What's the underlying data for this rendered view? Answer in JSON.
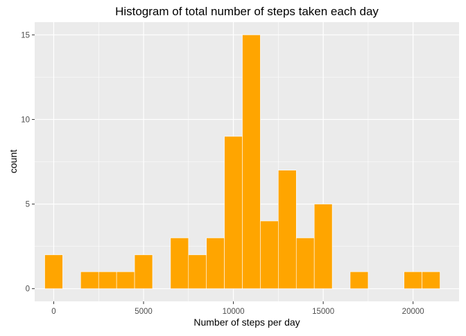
{
  "chart_data": {
    "type": "bar",
    "title": "Histogram of total number of steps taken each day",
    "xlabel": "Number of steps per day",
    "ylabel": "count",
    "xlim": [
      -1060,
      22560
    ],
    "ylim": [
      -0.75,
      15.75
    ],
    "bin_width": 1000,
    "x_ticks": [
      0,
      5000,
      10000,
      15000,
      20000
    ],
    "x_tick_labels": [
      "0",
      "5000",
      "10000",
      "15000",
      "20000"
    ],
    "y_ticks": [
      0,
      5,
      10,
      15
    ],
    "y_tick_labels": [
      "0",
      "5",
      "10",
      "15"
    ],
    "bins": [
      {
        "x": 0,
        "count": 2
      },
      {
        "x": 2000,
        "count": 1
      },
      {
        "x": 3000,
        "count": 1
      },
      {
        "x": 4000,
        "count": 1
      },
      {
        "x": 5000,
        "count": 2
      },
      {
        "x": 7000,
        "count": 3
      },
      {
        "x": 8000,
        "count": 2
      },
      {
        "x": 9000,
        "count": 3
      },
      {
        "x": 10000,
        "count": 9
      },
      {
        "x": 11000,
        "count": 15
      },
      {
        "x": 12000,
        "count": 4
      },
      {
        "x": 13000,
        "count": 7
      },
      {
        "x": 14000,
        "count": 3
      },
      {
        "x": 15000,
        "count": 5
      },
      {
        "x": 17000,
        "count": 1
      },
      {
        "x": 20000,
        "count": 1
      },
      {
        "x": 21000,
        "count": 1
      }
    ],
    "bar_color": "#FFA500",
    "bar_outline": "#FFFFFF",
    "panel_background": "#EBEBEB",
    "grid_major_color": "#FFFFFF",
    "grid": true
  }
}
